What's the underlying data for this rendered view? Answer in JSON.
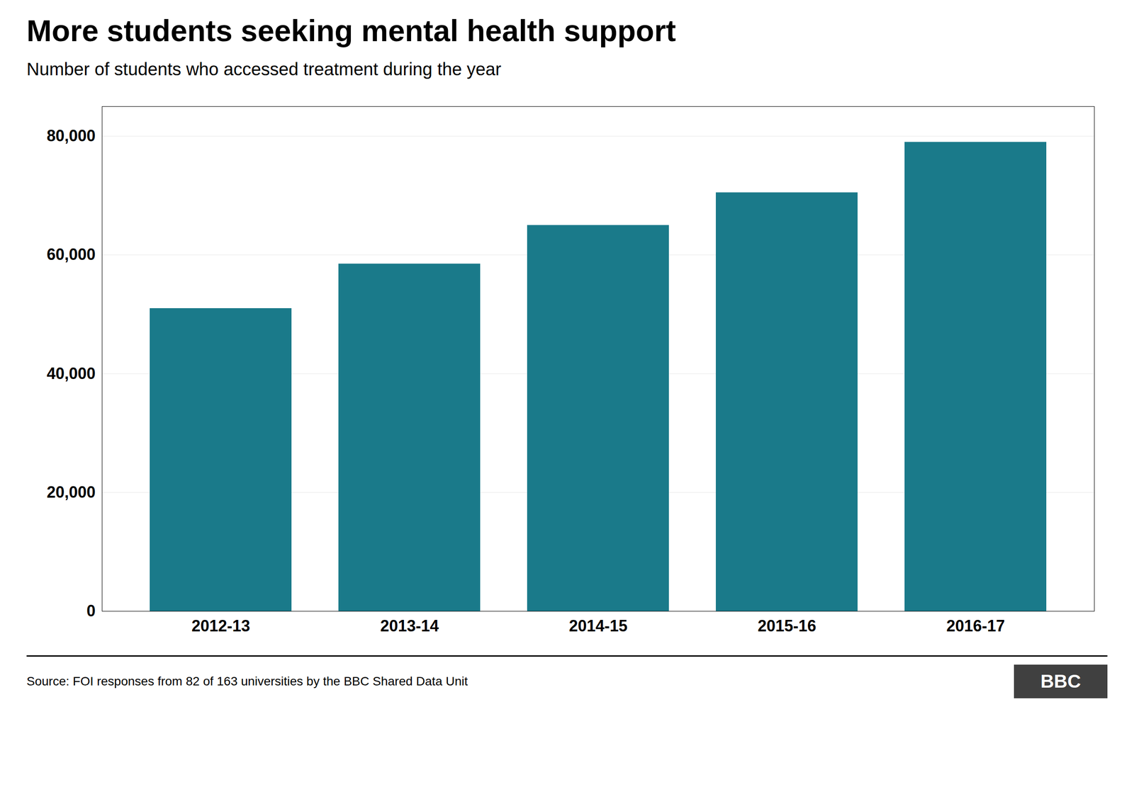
{
  "chart_data": {
    "type": "bar",
    "title": "More students seeking mental health support",
    "subtitle": "Number of students who accessed treatment during the year",
    "categories": [
      "2012-13",
      "2013-14",
      "2014-15",
      "2015-16",
      "2016-17"
    ],
    "values": [
      51000,
      58500,
      65000,
      70500,
      79000
    ],
    "color": "#1a7a8a",
    "ylim": [
      0,
      85000
    ],
    "yticks": [
      0,
      {
        "value": 20000,
        "label": "20,000"
      },
      {
        "value": 40000,
        "label": "40,000"
      },
      {
        "value": 60000,
        "label": "60,000"
      },
      {
        "value": 80000,
        "label": "80,000"
      }
    ],
    "grid": true,
    "caption": "Source: FOI responses from 82 of 163 universities by the BBC Shared Data Unit",
    "annotations": [
      "BBC"
    ]
  }
}
